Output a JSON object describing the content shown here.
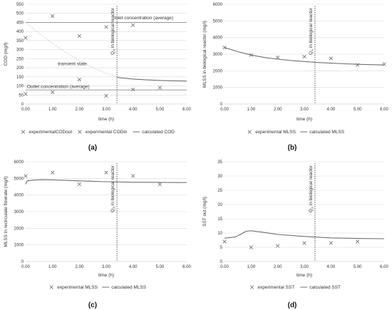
{
  "colors": {
    "marker": "#777777",
    "line": "#8c8c8c",
    "calc_line": "#6f6f6f",
    "grid": "#d9d9d9",
    "axis": "#bfbfbf",
    "vline": "#333333"
  },
  "chart_data": [
    {
      "type": "scatter",
      "panel_label": "(a)",
      "xlabel": "time (h)",
      "ylabel": "COD (mg/l)",
      "xlim": [
        0,
        6
      ],
      "ylim": [
        0,
        550
      ],
      "xticks": [
        "0.00",
        "1.00",
        "2.00",
        "3.00",
        "4.00",
        "5.00",
        "6.00"
      ],
      "yticks": [
        "0",
        "50",
        "100",
        "150",
        "200",
        "250",
        "300",
        "350",
        "400",
        "450",
        "500",
        "550"
      ],
      "grid": "horizontal",
      "vline_x": 3.4,
      "vline_label": "Q",
      "vline_label_sub": "A",
      "vline_label_rest": " in biological  reactor",
      "annotations": [
        {
          "text": "Inlet concentration (average)",
          "x": 3.3,
          "y": 468
        },
        {
          "text": "transient state",
          "x": 1.2,
          "y": 215
        },
        {
          "text": "Outlet concentration (average)",
          "x": 0.05,
          "y": 88
        }
      ],
      "hlines": [
        {
          "y": 450
        },
        {
          "y": 78
        }
      ],
      "series": [
        {
          "name": "experimentalCODout",
          "kind": "points",
          "x": [
            0,
            1,
            2,
            3,
            4,
            5
          ],
          "y": [
            55,
            65,
            135,
            45,
            80,
            90
          ]
        },
        {
          "name": "experimental CODin",
          "kind": "points",
          "x": [
            0,
            1,
            2,
            3,
            4
          ],
          "y": [
            365,
            485,
            375,
            425,
            435
          ]
        },
        {
          "name": "calculated COD",
          "kind": "line",
          "x": [
            3.4,
            3.5,
            4.0,
            4.5,
            5.0,
            5.5,
            6.0
          ],
          "y": [
            148,
            145,
            138,
            133,
            130,
            128,
            127
          ]
        },
        {
          "name": "",
          "kind": "dotted",
          "x": [
            0,
            0.5,
            1.0,
            1.5,
            2.0,
            2.5,
            3.0,
            3.4
          ],
          "y": [
            450,
            390,
            335,
            285,
            240,
            200,
            170,
            150
          ]
        }
      ],
      "legend": [
        "experimentalCODout",
        "experimental CODin",
        "calculated COD"
      ]
    },
    {
      "type": "line",
      "panel_label": "(b)",
      "xlabel": "time (h)",
      "ylabel": "MLSS in biological reactor (mg/l)",
      "xlim": [
        0,
        6
      ],
      "ylim": [
        0,
        6000
      ],
      "xticks": [
        "0.00",
        "1.00",
        "2.00",
        "3.00",
        "4.00",
        "5.00",
        "6.00"
      ],
      "yticks": [
        "0",
        "1000",
        "2000",
        "3000",
        "4000",
        "5000",
        "6000"
      ],
      "grid": "horizontal",
      "vline_x": 3.4,
      "vline_label": "Q",
      "vline_label_sub": "A",
      "vline_label_rest": " in biological  reactor",
      "annotations": [],
      "hlines": [],
      "series": [
        {
          "name": "experimental MLSS",
          "kind": "points",
          "x": [
            0,
            1,
            2,
            3,
            4,
            5,
            6
          ],
          "y": [
            3400,
            2950,
            2800,
            2850,
            2750,
            2350,
            2400
          ]
        },
        {
          "name": "calculated MLSS",
          "kind": "line",
          "x": [
            0,
            0.5,
            1,
            1.5,
            2,
            2.5,
            3,
            3.5,
            4,
            4.5,
            5,
            5.5,
            6
          ],
          "y": [
            3400,
            3150,
            2950,
            2800,
            2700,
            2620,
            2560,
            2500,
            2460,
            2420,
            2390,
            2370,
            2350
          ]
        }
      ],
      "legend": [
        "experimental MLSS",
        "calculated MLSS"
      ]
    },
    {
      "type": "line",
      "panel_label": "(c)",
      "xlabel": "time (h)",
      "ylabel": "MLSS in recirculate flowrate (mg/l)",
      "xlim": [
        0,
        6
      ],
      "ylim": [
        0,
        6000
      ],
      "xticks": [
        "0.00",
        "1.00",
        "2.00",
        "3.00",
        "4.00",
        "5.00",
        "6.00"
      ],
      "yticks": [
        "0",
        "1000",
        "2000",
        "3000",
        "4000",
        "5000",
        "6000"
      ],
      "grid": "horizontal",
      "vline_x": 3.4,
      "vline_label": "Q",
      "vline_label_sub": "A",
      "vline_label_rest": " in biological  reactor",
      "annotations": [],
      "hlines": [],
      "series": [
        {
          "name": "experimental MLSS",
          "kind": "points",
          "x": [
            0,
            1,
            2,
            3,
            4,
            5
          ],
          "y": [
            5150,
            5350,
            4650,
            5350,
            5150,
            4650
          ]
        },
        {
          "name": "calculated MLSS",
          "kind": "line",
          "x": [
            0,
            0.05,
            0.3,
            0.6,
            1,
            1.5,
            2,
            3,
            4,
            5,
            6
          ],
          "y": [
            4650,
            4850,
            4900,
            4920,
            4910,
            4880,
            4850,
            4800,
            4770,
            4760,
            4750
          ]
        }
      ],
      "legend": [
        "experimental MLSS",
        "calculated MLSS"
      ]
    },
    {
      "type": "line",
      "panel_label": "(d)",
      "xlabel": "time (h)",
      "ylabel": "SST out (mg/l)",
      "xlim": [
        0,
        6
      ],
      "ylim": [
        0,
        35
      ],
      "xticks": [
        "0.00",
        "1.00",
        "2.00",
        "3.00",
        "4.00",
        "5.00",
        "6.00"
      ],
      "yticks": [
        "0",
        "5",
        "10",
        "15",
        "20",
        "25",
        "30",
        "35"
      ],
      "grid": "horizontal",
      "vline_x": 3.4,
      "vline_label": "Q",
      "vline_label_sub": "A",
      "vline_label_rest": " in biological  reactor",
      "annotations": [],
      "hlines": [],
      "series": [
        {
          "name": "experimental SST",
          "kind": "points",
          "x": [
            0,
            1,
            2,
            3,
            4,
            5
          ],
          "y": [
            7,
            5,
            5.5,
            6.5,
            6.5,
            7
          ]
        },
        {
          "name": "calculated SST",
          "kind": "line",
          "x": [
            0,
            0.4,
            0.6,
            0.8,
            1.0,
            1.5,
            2,
            3,
            4,
            5,
            6
          ],
          "y": [
            8.2,
            8.6,
            9.5,
            10.6,
            10.8,
            10.2,
            9.5,
            8.8,
            8.3,
            8.1,
            8.0
          ]
        }
      ],
      "legend": [
        "experimental SST",
        "calculated SST"
      ]
    }
  ]
}
